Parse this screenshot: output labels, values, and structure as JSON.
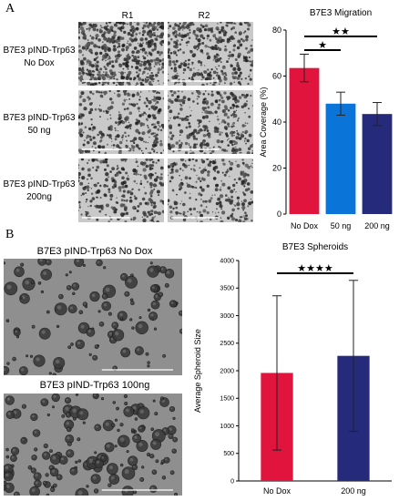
{
  "panelA": {
    "letter": "A",
    "col_labels": [
      "R1",
      "R2"
    ],
    "rows": [
      {
        "line1": "B7E3 pIND-Trp63",
        "line2": "No Dox"
      },
      {
        "line1": "B7E3 pIND-Trp63",
        "line2": "50 ng"
      },
      {
        "line1": "B7E3 pIND-Trp63",
        "line2": "200ng"
      }
    ]
  },
  "panelB": {
    "letter": "B",
    "image_titles": [
      "B7E3 pIND-Trp63 No Dox",
      "B7E3 pIND-Trp63 100ng"
    ]
  },
  "colors": {
    "red": "#e0143c",
    "blue": "#0a74d8",
    "navy": "#252a7a",
    "micro_bg": "#c9c9c9",
    "spheroid_bg": "#8f8f8f"
  },
  "chart_data": [
    {
      "type": "bar",
      "title": "B7E3 Migration",
      "ylabel": "Area Coverage (%)",
      "xlabel": "",
      "categories": [
        "No Dox",
        "50 ng",
        "200 ng"
      ],
      "values": [
        63.5,
        48,
        43.5
      ],
      "errors": [
        6,
        5,
        5
      ],
      "colors": [
        "#e0143c",
        "#0a74d8",
        "#252a7a"
      ],
      "ylim": [
        0,
        80
      ],
      "yticks": [
        0,
        20,
        40,
        60,
        80
      ],
      "significance": [
        {
          "from": 0,
          "to": 1,
          "label": "★"
        },
        {
          "from": 0,
          "to": 2,
          "label": "★★"
        }
      ]
    },
    {
      "type": "bar",
      "title": "B7E3 Spheroids",
      "ylabel": "Average Spheroid Size",
      "xlabel": "",
      "categories": [
        "No Dox",
        "200 ng"
      ],
      "values": [
        1960,
        2270
      ],
      "errors": [
        1400,
        1370
      ],
      "colors": [
        "#e0143c",
        "#252a7a"
      ],
      "ylim": [
        0,
        4000
      ],
      "yticks": [
        0,
        500,
        1000,
        1500,
        2000,
        2500,
        3000,
        3500,
        4000
      ],
      "significance": [
        {
          "from": 0,
          "to": 1,
          "label": "★★★★"
        }
      ]
    }
  ]
}
